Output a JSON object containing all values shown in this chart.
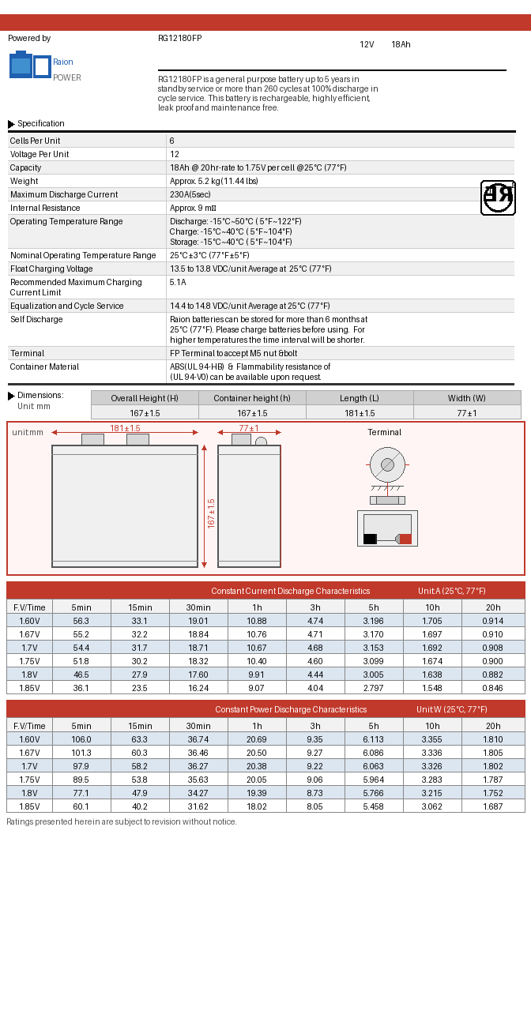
{
  "title_model": "RG12180FP",
  "title_voltage": "12V",
  "title_ah": "18Ah",
  "powered_by": "Powered by",
  "description": "RG12180FP is a general purpose battery up to 5 years in\nstandby service or more than 260 cycles at 100% discharge in\ncycle service. This battery is rechargeable, highly efficient,\nleak proof and maintenance free.",
  "spec_title": "Specification",
  "specs": [
    [
      "Cells Per Unit",
      "6"
    ],
    [
      "Voltage Per Unit",
      "12"
    ],
    [
      "Capacity",
      "18Ah @ 20hr-rate to 1.75V per cell @25°C (77°F)"
    ],
    [
      "Weight",
      "Approx. 5.2 kg(11.44 lbs)"
    ],
    [
      "Maximum Discharge Current",
      "230A(5sec)"
    ],
    [
      "Internal Resistance",
      "Approx. 9 mΩ"
    ],
    [
      "Operating Temperature Range",
      "Discharge: -15°C~50°C ( 5°F~122°F)\nCharge: -15°C~40°C ( 5°F~104°F)\nStorage: -15°C~40°C ( 5°F~104°F)"
    ],
    [
      "Nominal Operating Temperature Range",
      "25°C±3°C (77°F±5°F)"
    ],
    [
      "Float Charging Voltage",
      "13.5 to 13.8 VDC/unit Average at  25°C (77°F)"
    ],
    [
      "Recommended Maximum Charging\nCurrent Limit",
      "5.1A"
    ],
    [
      "Equalization and Cycle Service",
      "14.4 to 14.8 VDC/unit Average at 25°C (77°F)"
    ],
    [
      "Self Discharge",
      "Raion batteries can be stored for more than 6 months at\n25°C (77°F). Please charge batteries before using.  For\nhigher temperatures the time interval will be shorter."
    ],
    [
      "Terminal",
      "FP Terminal to accept M5 nut &bolt"
    ],
    [
      "Container Material",
      "ABS(UL 94-HB)  &  Flammability resistance of\n(UL 94-V0) can be available upon request."
    ]
  ],
  "dim_title": "Dimensions :",
  "dim_unit": "Unit: mm",
  "dim_headers": [
    "Overall Height (H)",
    "Container height (h)",
    "Length (L)",
    "Width (W)"
  ],
  "dim_values": [
    "167±1.5",
    "167±1.5",
    "181±1.5",
    "77±1"
  ],
  "cc_title": "Constant Current Discharge Characteristics",
  "cc_unit": "Unit:A (25°C, 77°F)",
  "cc_headers": [
    "F.V/Time",
    "5min",
    "15min",
    "30min",
    "1h",
    "3h",
    "5h",
    "10h",
    "20h"
  ],
  "cc_data": [
    [
      "1.60V",
      "56.3",
      "33.1",
      "19.01",
      "10.88",
      "4.74",
      "3.196",
      "1.705",
      "0.914"
    ],
    [
      "1.67V",
      "55.2",
      "32.2",
      "18.84",
      "10.76",
      "4.71",
      "3.170",
      "1.697",
      "0.910"
    ],
    [
      "1.7V",
      "54.4",
      "31.7",
      "18.71",
      "10.67",
      "4.68",
      "3.153",
      "1.692",
      "0.908"
    ],
    [
      "1.75V",
      "51.8",
      "30.2",
      "18.32",
      "10.40",
      "4.60",
      "3.099",
      "1.674",
      "0.900"
    ],
    [
      "1.8V",
      "46.5",
      "27.9",
      "17.60",
      "9.91",
      "4.44",
      "3.005",
      "1.638",
      "0.882"
    ],
    [
      "1.85V",
      "36.1",
      "23.5",
      "16.24",
      "9.07",
      "4.04",
      "2.797",
      "1.548",
      "0.846"
    ]
  ],
  "cp_title": "Constant Power Discharge Characteristics",
  "cp_unit": "Unit:W (25°C, 77°F)",
  "cp_headers": [
    "F.V/Time",
    "5min",
    "15min",
    "30min",
    "1h",
    "3h",
    "5h",
    "10h",
    "20h"
  ],
  "cp_data": [
    [
      "1.60V",
      "106.0",
      "63.3",
      "36.74",
      "20.69",
      "9.35",
      "6.113",
      "3.355",
      "1.810"
    ],
    [
      "1.67V",
      "101.3",
      "60.3",
      "36.46",
      "20.50",
      "9.27",
      "6.086",
      "3.336",
      "1.805"
    ],
    [
      "1.7V",
      "97.9",
      "58.2",
      "36.27",
      "20.38",
      "9.22",
      "6.063",
      "3.326",
      "1.802"
    ],
    [
      "1.75V",
      "89.5",
      "53.8",
      "35.63",
      "20.05",
      "9.06",
      "5.964",
      "3.283",
      "1.787"
    ],
    [
      "1.8V",
      "77.1",
      "47.9",
      "34.27",
      "19.39",
      "8.73",
      "5.766",
      "3.215",
      "1.752"
    ],
    [
      "1.85V",
      "60.1",
      "40.2",
      "31.62",
      "18.02",
      "8.05",
      "5.458",
      "3.062",
      "1.687"
    ]
  ],
  "footer": "Ratings presented herein are subject to revision without notice.",
  "red_color": "#c0392b",
  "table_header_bg": "#c0392b",
  "table_header_fg": "#ffffff",
  "col_header_bg": "#f2f2f2",
  "row_even": "#dce6f1",
  "row_odd": "#ffffff",
  "border_color": "#888888",
  "background": "#ffffff",
  "spec_label_bg_even": "#f0f0f0",
  "spec_label_bg_odd": "#ffffff"
}
